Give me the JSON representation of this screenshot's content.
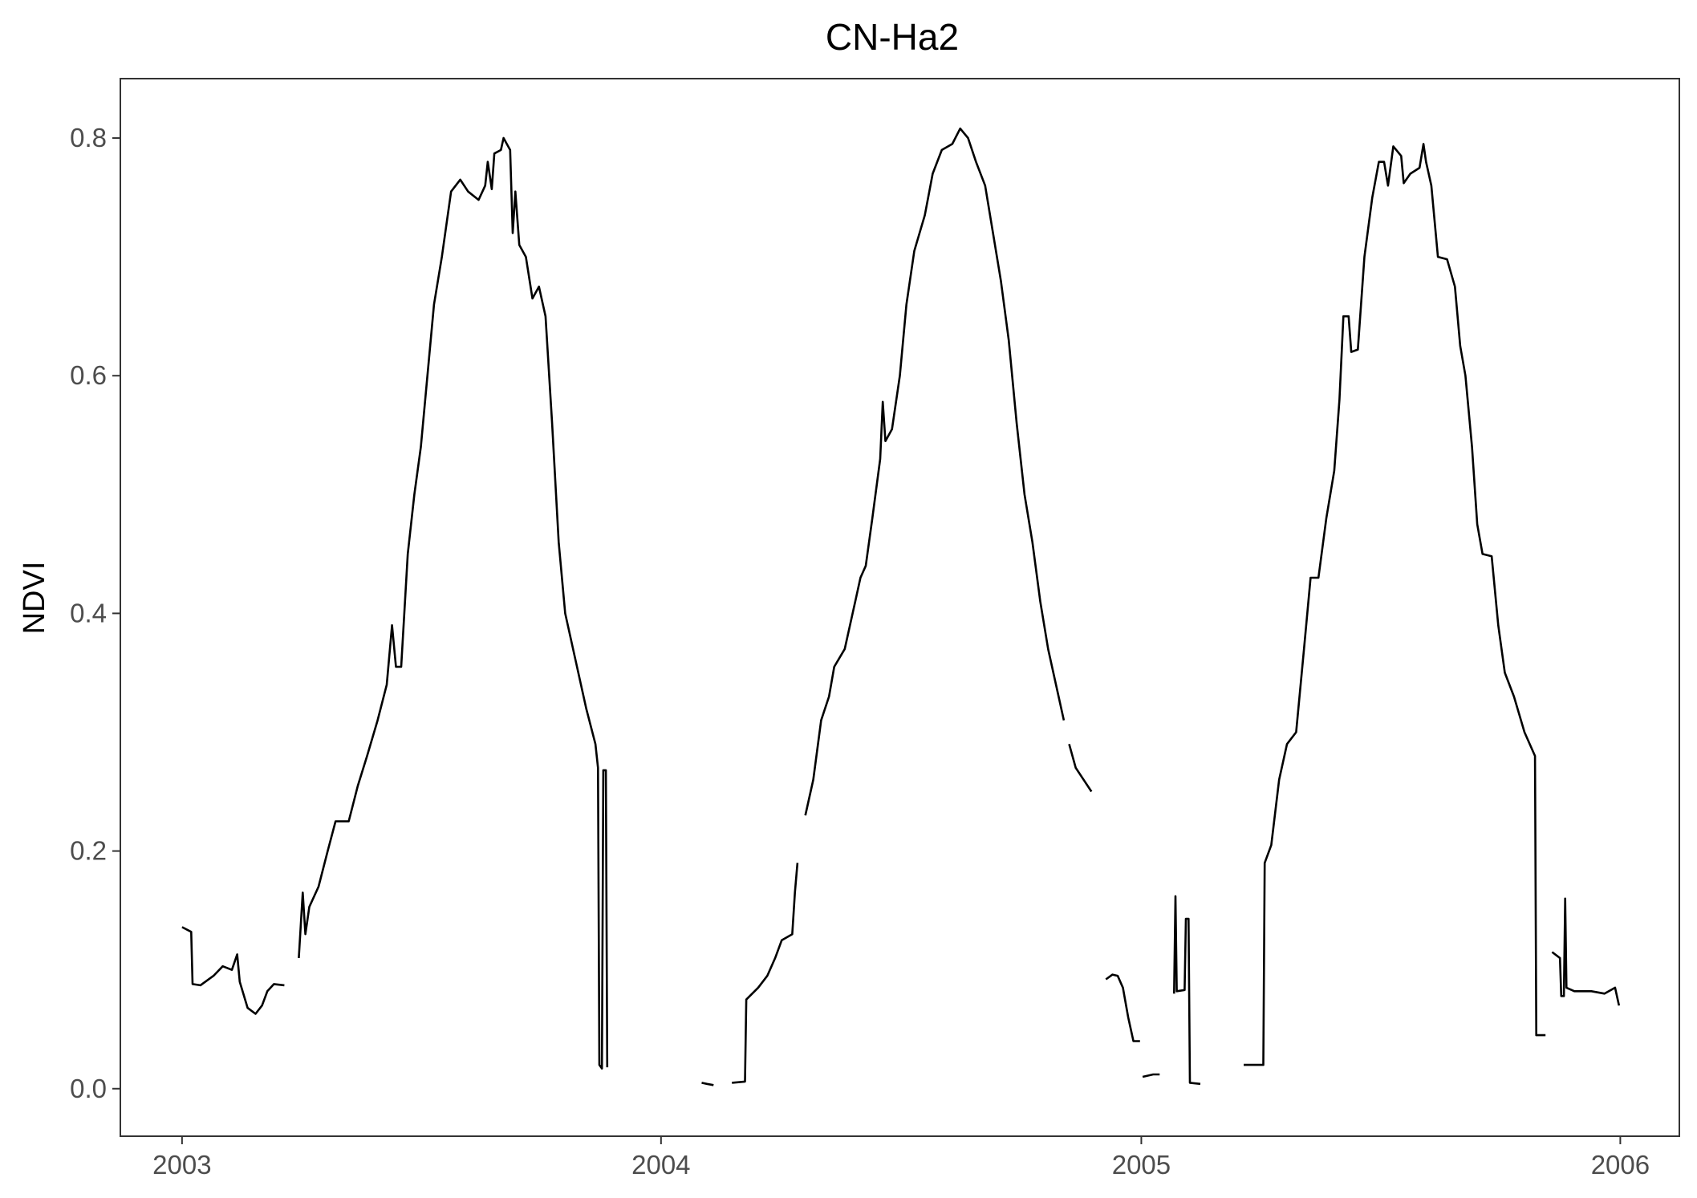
{
  "chart_data": {
    "type": "line",
    "title": "CN-Ha2",
    "xlabel": "",
    "ylabel": "NDVI",
    "x_type": "date",
    "xlim": [
      "2002-11-15",
      "2006-02-15"
    ],
    "ylim": [
      -0.04,
      0.85
    ],
    "x_ticks": [
      {
        "value": "2003-01-01",
        "label": "2003"
      },
      {
        "value": "2004-01-01",
        "label": "2004"
      },
      {
        "value": "2005-01-01",
        "label": "2005"
      },
      {
        "value": "2006-01-01",
        "label": "2006"
      }
    ],
    "y_ticks": [
      {
        "value": 0.0,
        "label": "0.0"
      },
      {
        "value": 0.2,
        "label": "0.2"
      },
      {
        "value": 0.4,
        "label": "0.4"
      },
      {
        "value": 0.6,
        "label": "0.6"
      },
      {
        "value": 0.8,
        "label": "0.8"
      }
    ],
    "grid": false,
    "line_color": "#000000",
    "series": [
      {
        "segments": [
          [
            [
              "2003-01-01",
              0.136
            ],
            [
              "2003-01-08",
              0.132
            ],
            [
              "2003-01-09",
              0.088
            ],
            [
              "2003-01-15",
              0.087
            ],
            [
              "2003-01-25",
              0.095
            ],
            [
              "2003-02-01",
              0.103
            ],
            [
              "2003-02-08",
              0.1
            ],
            [
              "2003-02-12",
              0.113
            ],
            [
              "2003-02-14",
              0.09
            ],
            [
              "2003-02-20",
              0.068
            ],
            [
              "2003-02-26",
              0.063
            ],
            [
              "2003-03-03",
              0.07
            ],
            [
              "2003-03-07",
              0.082
            ],
            [
              "2003-03-12",
              0.088
            ],
            [
              "2003-03-20",
              0.087
            ]
          ],
          [
            [
              "2003-03-31",
              0.11
            ],
            [
              "2003-04-03",
              0.165
            ],
            [
              "2003-04-05",
              0.13
            ],
            [
              "2003-04-08",
              0.153
            ],
            [
              "2003-04-15",
              0.17
            ],
            [
              "2003-04-22",
              0.2
            ],
            [
              "2003-04-28",
              0.225
            ],
            [
              "2003-05-08",
              0.225
            ],
            [
              "2003-05-15",
              0.255
            ],
            [
              "2003-05-22",
              0.28
            ],
            [
              "2003-05-30",
              0.31
            ],
            [
              "2003-06-06",
              0.34
            ],
            [
              "2003-06-10",
              0.39
            ],
            [
              "2003-06-13",
              0.355
            ],
            [
              "2003-06-17",
              0.355
            ],
            [
              "2003-06-22",
              0.45
            ],
            [
              "2003-06-27",
              0.5
            ],
            [
              "2003-07-02",
              0.54
            ],
            [
              "2003-07-07",
              0.6
            ],
            [
              "2003-07-12",
              0.66
            ],
            [
              "2003-07-18",
              0.7
            ],
            [
              "2003-07-25",
              0.755
            ],
            [
              "2003-08-01",
              0.765
            ],
            [
              "2003-08-07",
              0.755
            ],
            [
              "2003-08-15",
              0.748
            ],
            [
              "2003-08-20",
              0.76
            ],
            [
              "2003-08-22",
              0.78
            ],
            [
              "2003-08-25",
              0.757
            ],
            [
              "2003-08-27",
              0.787
            ],
            [
              "2003-09-01",
              0.79
            ],
            [
              "2003-09-03",
              0.8
            ],
            [
              "2003-09-08",
              0.79
            ],
            [
              "2003-09-10",
              0.72
            ],
            [
              "2003-09-12",
              0.755
            ],
            [
              "2003-09-15",
              0.71
            ],
            [
              "2003-09-20",
              0.7
            ],
            [
              "2003-09-25",
              0.665
            ],
            [
              "2003-09-30",
              0.675
            ],
            [
              "2003-10-05",
              0.65
            ],
            [
              "2003-10-10",
              0.56
            ],
            [
              "2003-10-15",
              0.46
            ],
            [
              "2003-10-20",
              0.4
            ],
            [
              "2003-10-28",
              0.36
            ],
            [
              "2003-11-05",
              0.32
            ],
            [
              "2003-11-12",
              0.29
            ],
            [
              "2003-11-14",
              0.27
            ],
            [
              "2003-11-15",
              0.02
            ],
            [
              "2003-11-17",
              0.017
            ],
            [
              "2003-11-18",
              0.268
            ],
            [
              "2003-11-20",
              0.268
            ],
            [
              "2003-11-21",
              0.018
            ]
          ],
          [
            [
              "2004-02-01",
              0.005
            ],
            [
              "2004-02-05",
              0.004
            ],
            [
              "2004-02-10",
              0.003
            ]
          ],
          [
            [
              "2004-02-24",
              0.005
            ],
            [
              "2004-03-05",
              0.006
            ],
            [
              "2004-03-06",
              0.075
            ],
            [
              "2004-03-15",
              0.085
            ],
            [
              "2004-03-22",
              0.095
            ],
            [
              "2004-03-28",
              0.11
            ],
            [
              "2004-04-02",
              0.125
            ],
            [
              "2004-04-10",
              0.13
            ],
            [
              "2004-04-12",
              0.165
            ],
            [
              "2004-04-14",
              0.19
            ]
          ],
          [
            [
              "2004-04-20",
              0.23
            ],
            [
              "2004-04-26",
              0.26
            ],
            [
              "2004-05-02",
              0.31
            ],
            [
              "2004-05-08",
              0.33
            ],
            [
              "2004-05-12",
              0.355
            ],
            [
              "2004-05-20",
              0.37
            ],
            [
              "2004-05-28",
              0.41
            ],
            [
              "2004-06-01",
              0.43
            ],
            [
              "2004-06-05",
              0.44
            ],
            [
              "2004-06-10",
              0.48
            ],
            [
              "2004-06-16",
              0.53
            ],
            [
              "2004-06-18",
              0.578
            ],
            [
              "2004-06-20",
              0.545
            ],
            [
              "2004-06-25",
              0.555
            ],
            [
              "2004-07-01",
              0.6
            ],
            [
              "2004-07-06",
              0.66
            ],
            [
              "2004-07-12",
              0.705
            ],
            [
              "2004-07-20",
              0.735
            ],
            [
              "2004-07-26",
              0.77
            ],
            [
              "2004-08-02",
              0.79
            ],
            [
              "2004-08-10",
              0.795
            ],
            [
              "2004-08-16",
              0.808
            ],
            [
              "2004-08-22",
              0.8
            ],
            [
              "2004-08-28",
              0.78
            ],
            [
              "2004-09-04",
              0.76
            ],
            [
              "2004-09-10",
              0.72
            ],
            [
              "2004-09-16",
              0.68
            ],
            [
              "2004-09-22",
              0.63
            ],
            [
              "2004-09-28",
              0.56
            ],
            [
              "2004-10-04",
              0.5
            ],
            [
              "2004-10-10",
              0.46
            ],
            [
              "2004-10-16",
              0.41
            ],
            [
              "2004-10-22",
              0.37
            ],
            [
              "2004-10-28",
              0.34
            ],
            [
              "2004-11-03",
              0.31
            ]
          ],
          [
            [
              "2004-11-07",
              0.29
            ],
            [
              "2004-11-12",
              0.27
            ],
            [
              "2004-11-18",
              0.26
            ],
            [
              "2004-11-24",
              0.25
            ]
          ],
          [
            [
              "2004-12-05",
              0.092
            ],
            [
              "2004-12-10",
              0.096
            ],
            [
              "2004-12-14",
              0.095
            ],
            [
              "2004-12-18",
              0.085
            ],
            [
              "2004-12-22",
              0.06
            ],
            [
              "2004-12-26",
              0.04
            ],
            [
              "2004-12-31",
              0.04
            ]
          ],
          [
            [
              "2005-01-02",
              0.01
            ],
            [
              "2005-01-10",
              0.012
            ],
            [
              "2005-01-15",
              0.012
            ]
          ],
          [
            [
              "2005-01-26",
              0.08
            ],
            [
              "2005-01-27",
              0.162
            ],
            [
              "2005-01-28",
              0.082
            ],
            [
              "2005-02-03",
              0.083
            ],
            [
              "2005-02-04",
              0.143
            ],
            [
              "2005-02-06",
              0.143
            ],
            [
              "2005-02-07",
              0.005
            ],
            [
              "2005-02-15",
              0.004
            ]
          ],
          [
            [
              "2005-03-20",
              0.02
            ],
            [
              "2005-04-04",
              0.02
            ],
            [
              "2005-04-05",
              0.19
            ],
            [
              "2005-04-10",
              0.205
            ],
            [
              "2005-04-16",
              0.26
            ],
            [
              "2005-04-22",
              0.29
            ],
            [
              "2005-04-29",
              0.3
            ],
            [
              "2005-05-05",
              0.37
            ],
            [
              "2005-05-10",
              0.43
            ],
            [
              "2005-05-16",
              0.43
            ],
            [
              "2005-05-22",
              0.48
            ],
            [
              "2005-05-28",
              0.52
            ],
            [
              "2005-06-01",
              0.58
            ],
            [
              "2005-06-04",
              0.65
            ],
            [
              "2005-06-08",
              0.65
            ],
            [
              "2005-06-10",
              0.62
            ],
            [
              "2005-06-15",
              0.622
            ],
            [
              "2005-06-20",
              0.7
            ],
            [
              "2005-06-26",
              0.75
            ],
            [
              "2005-07-01",
              0.78
            ],
            [
              "2005-07-05",
              0.78
            ],
            [
              "2005-07-08",
              0.76
            ],
            [
              "2005-07-12",
              0.793
            ],
            [
              "2005-07-18",
              0.785
            ],
            [
              "2005-07-20",
              0.762
            ],
            [
              "2005-07-25",
              0.77
            ],
            [
              "2005-08-01",
              0.775
            ],
            [
              "2005-08-04",
              0.795
            ],
            [
              "2005-08-06",
              0.78
            ],
            [
              "2005-08-10",
              0.76
            ],
            [
              "2005-08-15",
              0.7
            ],
            [
              "2005-08-22",
              0.698
            ],
            [
              "2005-08-28",
              0.675
            ],
            [
              "2005-09-01",
              0.625
            ],
            [
              "2005-09-05",
              0.6
            ],
            [
              "2005-09-10",
              0.54
            ],
            [
              "2005-09-14",
              0.475
            ],
            [
              "2005-09-18",
              0.45
            ],
            [
              "2005-09-25",
              0.448
            ],
            [
              "2005-09-30",
              0.39
            ],
            [
              "2005-10-05",
              0.35
            ],
            [
              "2005-10-12",
              0.33
            ],
            [
              "2005-10-20",
              0.3
            ],
            [
              "2005-10-28",
              0.28
            ],
            [
              "2005-10-29",
              0.045
            ],
            [
              "2005-11-05",
              0.045
            ]
          ],
          [
            [
              "2005-11-10",
              0.115
            ],
            [
              "2005-11-16",
              0.11
            ],
            [
              "2005-11-17",
              0.078
            ],
            [
              "2005-11-19",
              0.078
            ],
            [
              "2005-11-20",
              0.16
            ],
            [
              "2005-11-21",
              0.085
            ],
            [
              "2005-11-27",
              0.082
            ],
            [
              "2005-12-10",
              0.082
            ],
            [
              "2005-12-20",
              0.08
            ],
            [
              "2005-12-28",
              0.085
            ],
            [
              "2005-12-31",
              0.07
            ]
          ]
        ]
      }
    ]
  }
}
